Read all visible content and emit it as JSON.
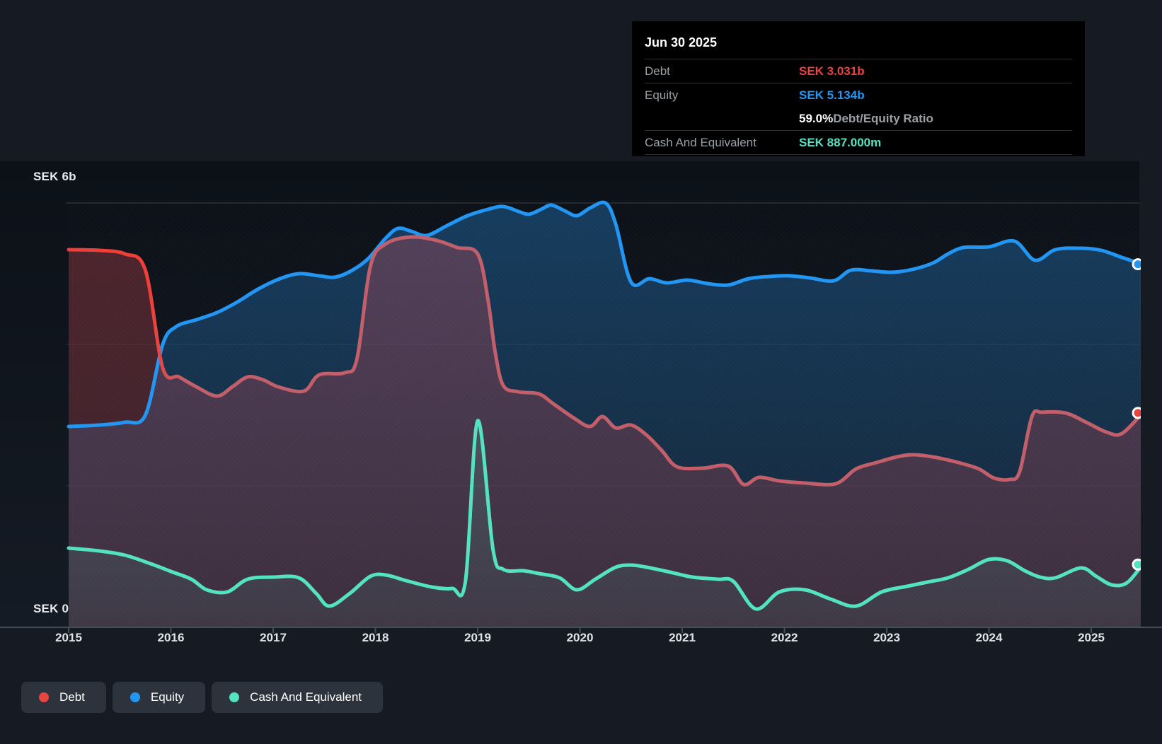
{
  "colors": {
    "debt": "#e84440",
    "debt-muted": "#c25f6b",
    "equity": "#2396f3",
    "cash": "#54e3c1",
    "grid": "#3a414b",
    "grid-faint": "#343b45",
    "axis": "#454d57",
    "text-bright": "#e8eaed",
    "text-muted": "#9aa0a6"
  },
  "tooltip": {
    "date": "Jun 30 2025",
    "debt_label": "Debt",
    "debt_value": "SEK 3.031b",
    "equity_label": "Equity",
    "equity_value": "SEK 5.134b",
    "ratio_value": "59.0%",
    "ratio_label": " Debt/Equity Ratio",
    "cash_label": "Cash And Equivalent",
    "cash_value": "SEK 887.000m"
  },
  "legend": {
    "items": [
      {
        "label": "Debt",
        "color_key": "debt"
      },
      {
        "label": "Equity",
        "color_key": "equity"
      },
      {
        "label": "Cash And Equivalent",
        "color_key": "cash"
      }
    ]
  },
  "chart_data": {
    "type": "area",
    "xlabel": "",
    "ylabel": "SEK",
    "xlim": [
      2015,
      2025.5
    ],
    "ylim": [
      0,
      6
    ],
    "x_ticks": [
      2015,
      2016,
      2017,
      2018,
      2019,
      2020,
      2021,
      2022,
      2023,
      2024,
      2025
    ],
    "grid_values": [
      6,
      4,
      2
    ],
    "y_axis_labels": {
      "top": "SEK 6b",
      "bottom": "SEK 0"
    },
    "legend_position": "bottom-left",
    "series": [
      {
        "name": "Debt",
        "unit": "SEK b",
        "last_value_label": "SEK 3.031b",
        "points": [
          [
            2015.0,
            5.34
          ],
          [
            2015.3,
            5.33
          ],
          [
            2015.55,
            5.28
          ],
          [
            2015.75,
            5.05
          ],
          [
            2015.92,
            3.67
          ],
          [
            2016.08,
            3.54
          ],
          [
            2016.25,
            3.4
          ],
          [
            2016.45,
            3.27
          ],
          [
            2016.6,
            3.4
          ],
          [
            2016.75,
            3.54
          ],
          [
            2016.9,
            3.5
          ],
          [
            2017.05,
            3.4
          ],
          [
            2017.3,
            3.34
          ],
          [
            2017.45,
            3.57
          ],
          [
            2017.7,
            3.6
          ],
          [
            2017.82,
            3.8
          ],
          [
            2017.95,
            5.1
          ],
          [
            2018.1,
            5.42
          ],
          [
            2018.35,
            5.52
          ],
          [
            2018.6,
            5.47
          ],
          [
            2018.8,
            5.37
          ],
          [
            2019.0,
            5.28
          ],
          [
            2019.1,
            4.64
          ],
          [
            2019.17,
            3.9
          ],
          [
            2019.25,
            3.42
          ],
          [
            2019.4,
            3.33
          ],
          [
            2019.6,
            3.3
          ],
          [
            2019.75,
            3.15
          ],
          [
            2019.95,
            2.95
          ],
          [
            2020.1,
            2.84
          ],
          [
            2020.22,
            2.98
          ],
          [
            2020.35,
            2.82
          ],
          [
            2020.5,
            2.86
          ],
          [
            2020.65,
            2.72
          ],
          [
            2020.8,
            2.5
          ],
          [
            2020.95,
            2.27
          ],
          [
            2021.2,
            2.25
          ],
          [
            2021.45,
            2.28
          ],
          [
            2021.6,
            2.02
          ],
          [
            2021.75,
            2.12
          ],
          [
            2021.95,
            2.07
          ],
          [
            2022.2,
            2.04
          ],
          [
            2022.5,
            2.03
          ],
          [
            2022.7,
            2.24
          ],
          [
            2022.9,
            2.33
          ],
          [
            2023.1,
            2.41
          ],
          [
            2023.25,
            2.44
          ],
          [
            2023.45,
            2.41
          ],
          [
            2023.7,
            2.33
          ],
          [
            2023.9,
            2.24
          ],
          [
            2024.05,
            2.11
          ],
          [
            2024.2,
            2.09
          ],
          [
            2024.3,
            2.2
          ],
          [
            2024.42,
            2.98
          ],
          [
            2024.52,
            3.04
          ],
          [
            2024.75,
            3.03
          ],
          [
            2024.95,
            2.9
          ],
          [
            2025.15,
            2.76
          ],
          [
            2025.3,
            2.74
          ],
          [
            2025.5,
            3.031
          ]
        ]
      },
      {
        "name": "Equity",
        "unit": "SEK b",
        "last_value_label": "SEK 5.134b",
        "points": [
          [
            2015.0,
            2.84
          ],
          [
            2015.3,
            2.86
          ],
          [
            2015.55,
            2.9
          ],
          [
            2015.75,
            3.0
          ],
          [
            2015.92,
            4.0
          ],
          [
            2016.05,
            4.25
          ],
          [
            2016.25,
            4.35
          ],
          [
            2016.45,
            4.45
          ],
          [
            2016.65,
            4.6
          ],
          [
            2016.85,
            4.78
          ],
          [
            2017.05,
            4.92
          ],
          [
            2017.25,
            5.0
          ],
          [
            2017.45,
            4.97
          ],
          [
            2017.6,
            4.95
          ],
          [
            2017.75,
            5.03
          ],
          [
            2017.92,
            5.2
          ],
          [
            2018.1,
            5.5
          ],
          [
            2018.22,
            5.64
          ],
          [
            2018.35,
            5.6
          ],
          [
            2018.5,
            5.54
          ],
          [
            2018.7,
            5.68
          ],
          [
            2018.9,
            5.82
          ],
          [
            2019.1,
            5.91
          ],
          [
            2019.25,
            5.95
          ],
          [
            2019.4,
            5.88
          ],
          [
            2019.5,
            5.84
          ],
          [
            2019.62,
            5.91
          ],
          [
            2019.72,
            5.97
          ],
          [
            2019.85,
            5.89
          ],
          [
            2019.97,
            5.82
          ],
          [
            2020.1,
            5.93
          ],
          [
            2020.25,
            6.0
          ],
          [
            2020.35,
            5.7
          ],
          [
            2020.5,
            4.88
          ],
          [
            2020.68,
            4.93
          ],
          [
            2020.85,
            4.87
          ],
          [
            2021.05,
            4.91
          ],
          [
            2021.25,
            4.86
          ],
          [
            2021.45,
            4.84
          ],
          [
            2021.65,
            4.93
          ],
          [
            2021.85,
            4.96
          ],
          [
            2022.05,
            4.97
          ],
          [
            2022.25,
            4.94
          ],
          [
            2022.48,
            4.9
          ],
          [
            2022.65,
            5.05
          ],
          [
            2022.85,
            5.04
          ],
          [
            2023.05,
            5.02
          ],
          [
            2023.25,
            5.06
          ],
          [
            2023.45,
            5.15
          ],
          [
            2023.6,
            5.28
          ],
          [
            2023.75,
            5.37
          ],
          [
            2024.0,
            5.38
          ],
          [
            2024.25,
            5.46
          ],
          [
            2024.45,
            5.19
          ],
          [
            2024.65,
            5.34
          ],
          [
            2024.9,
            5.36
          ],
          [
            2025.1,
            5.33
          ],
          [
            2025.3,
            5.23
          ],
          [
            2025.5,
            5.134
          ]
        ]
      },
      {
        "name": "Cash And Equivalent",
        "unit": "SEK b",
        "last_value_label": "SEK 887.000m",
        "points": [
          [
            2015.0,
            1.12
          ],
          [
            2015.3,
            1.08
          ],
          [
            2015.55,
            1.02
          ],
          [
            2015.8,
            0.9
          ],
          [
            2016.0,
            0.79
          ],
          [
            2016.2,
            0.68
          ],
          [
            2016.35,
            0.53
          ],
          [
            2016.55,
            0.5
          ],
          [
            2016.75,
            0.68
          ],
          [
            2017.0,
            0.71
          ],
          [
            2017.25,
            0.7
          ],
          [
            2017.42,
            0.48
          ],
          [
            2017.55,
            0.3
          ],
          [
            2017.75,
            0.48
          ],
          [
            2017.95,
            0.72
          ],
          [
            2018.1,
            0.74
          ],
          [
            2018.3,
            0.66
          ],
          [
            2018.55,
            0.57
          ],
          [
            2018.75,
            0.55
          ],
          [
            2018.88,
            0.65
          ],
          [
            2019.0,
            2.92
          ],
          [
            2019.15,
            1.1
          ],
          [
            2019.25,
            0.82
          ],
          [
            2019.45,
            0.8
          ],
          [
            2019.6,
            0.76
          ],
          [
            2019.8,
            0.7
          ],
          [
            2019.97,
            0.53
          ],
          [
            2020.15,
            0.68
          ],
          [
            2020.35,
            0.85
          ],
          [
            2020.5,
            0.88
          ],
          [
            2020.65,
            0.85
          ],
          [
            2020.85,
            0.79
          ],
          [
            2021.1,
            0.71
          ],
          [
            2021.35,
            0.68
          ],
          [
            2021.5,
            0.65
          ],
          [
            2021.72,
            0.26
          ],
          [
            2021.95,
            0.5
          ],
          [
            2022.2,
            0.53
          ],
          [
            2022.45,
            0.4
          ],
          [
            2022.7,
            0.3
          ],
          [
            2022.95,
            0.5
          ],
          [
            2023.2,
            0.58
          ],
          [
            2023.4,
            0.64
          ],
          [
            2023.6,
            0.7
          ],
          [
            2023.8,
            0.82
          ],
          [
            2024.0,
            0.96
          ],
          [
            2024.18,
            0.94
          ],
          [
            2024.35,
            0.8
          ],
          [
            2024.5,
            0.71
          ],
          [
            2024.65,
            0.7
          ],
          [
            2024.9,
            0.84
          ],
          [
            2025.05,
            0.72
          ],
          [
            2025.2,
            0.6
          ],
          [
            2025.35,
            0.63
          ],
          [
            2025.5,
            0.887
          ]
        ]
      }
    ]
  }
}
